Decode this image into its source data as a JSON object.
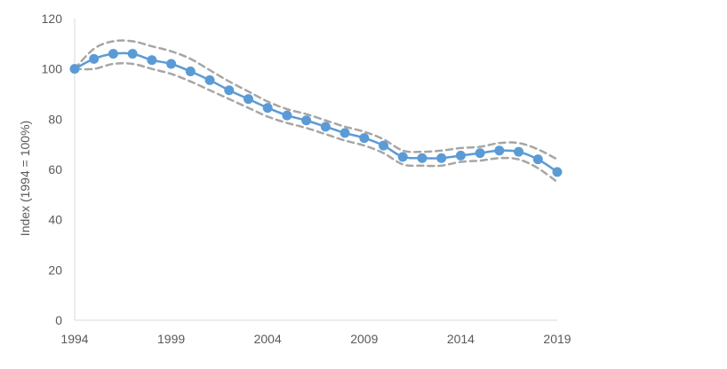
{
  "chart_data": {
    "type": "line",
    "title": "",
    "xlabel": "",
    "ylabel": "Index (1994 = 100%)",
    "xlim": [
      1994,
      2019
    ],
    "ylim": [
      0,
      120
    ],
    "yticks": [
      0,
      20,
      40,
      60,
      80,
      100,
      120
    ],
    "xticks": [
      1994,
      1999,
      2004,
      2009,
      2014,
      2019
    ],
    "grid": false,
    "legend": "none",
    "x": [
      1994,
      1995,
      1996,
      1997,
      1998,
      1999,
      2000,
      2001,
      2002,
      2003,
      2004,
      2005,
      2006,
      2007,
      2008,
      2009,
      2010,
      2011,
      2012,
      2013,
      2014,
      2015,
      2016,
      2017,
      2018,
      2019
    ],
    "series": [
      {
        "role": "estimate",
        "color": "#5b9bd5",
        "style": "solid-with-markers",
        "values": [
          100,
          104,
          106,
          106,
          103.5,
          102,
          99,
          95.5,
          91.5,
          88,
          84.5,
          81.5,
          79.5,
          77,
          74.5,
          72.5,
          69.5,
          65,
          64.5,
          64.5,
          65.5,
          66.5,
          67.5,
          67,
          64,
          59
        ]
      },
      {
        "role": "upper-bound",
        "color": "#a6a6a6",
        "style": "dashed",
        "values": [
          100,
          108,
          111,
          111,
          109,
          107,
          104,
          99.5,
          95,
          91,
          87,
          84,
          82,
          79.5,
          77,
          75,
          72,
          67.5,
          67,
          67.5,
          68.5,
          69,
          70.5,
          70.5,
          68,
          64
        ]
      },
      {
        "role": "lower-bound",
        "color": "#a6a6a6",
        "style": "dashed",
        "values": [
          100,
          100,
          102,
          102,
          100,
          98,
          95,
          91.5,
          88,
          84.5,
          81,
          78.5,
          76.5,
          74,
          71.5,
          69.5,
          66.5,
          62,
          61.5,
          61.5,
          63,
          63.5,
          64.5,
          64,
          60.5,
          55
        ]
      }
    ]
  }
}
